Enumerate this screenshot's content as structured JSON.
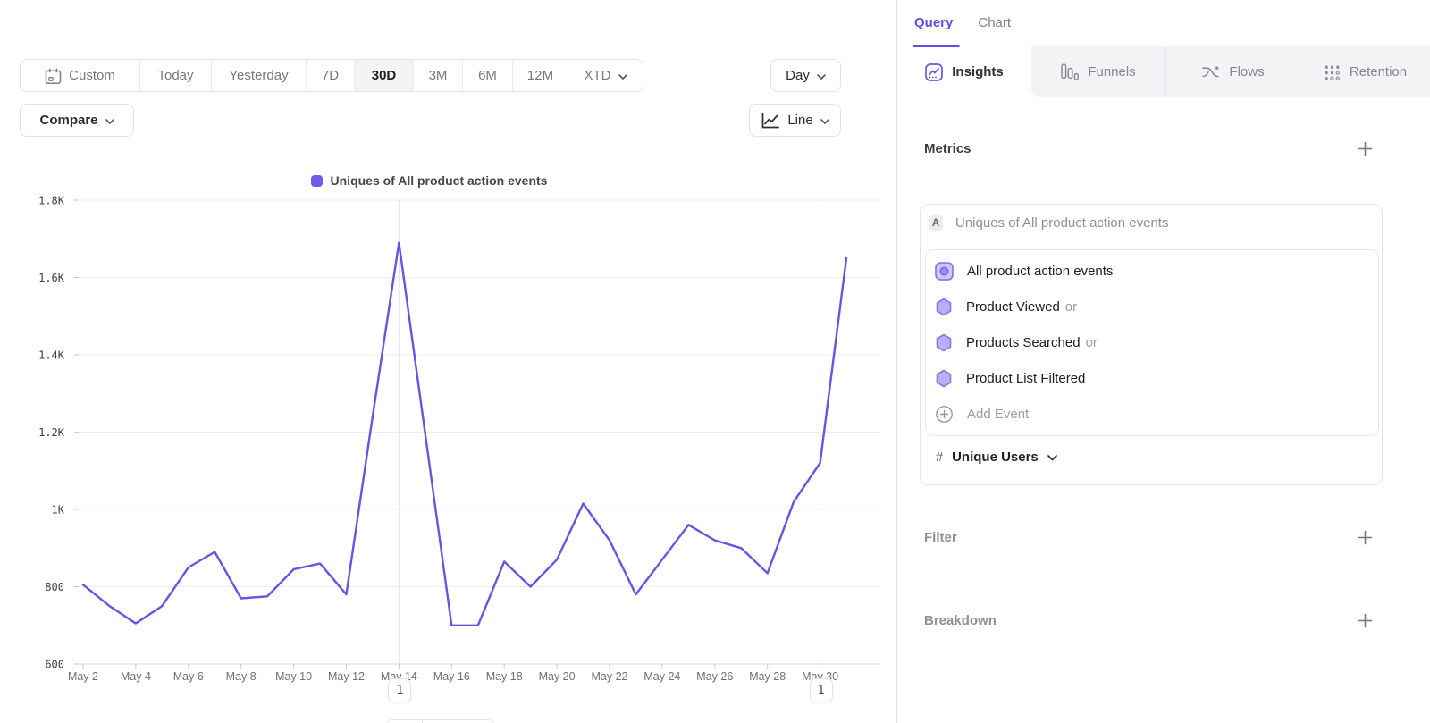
{
  "toolbar": {
    "ranges": [
      "Custom",
      "Today",
      "Yesterday",
      "7D",
      "30D",
      "3M",
      "6M",
      "12M",
      "XTD"
    ],
    "selected_range": "30D",
    "granularity": "Day",
    "chart_type": "Line",
    "compare_label": "Compare"
  },
  "legend": {
    "color": "#6b5ce8"
  },
  "chart_data": {
    "type": "line",
    "title": "Uniques of All product action events",
    "x": [
      "May 2",
      "May 3",
      "May 4",
      "May 5",
      "May 6",
      "May 7",
      "May 8",
      "May 9",
      "May 10",
      "May 11",
      "May 12",
      "May 13",
      "May 14",
      "May 15",
      "May 16",
      "May 17",
      "May 18",
      "May 19",
      "May 20",
      "May 21",
      "May 22",
      "May 23",
      "May 24",
      "May 25",
      "May 26",
      "May 27",
      "May 28",
      "May 29",
      "May 30",
      "May 31"
    ],
    "values": [
      805,
      750,
      705,
      750,
      850,
      890,
      770,
      775,
      845,
      860,
      780,
      1240,
      1690,
      1195,
      700,
      700,
      865,
      800,
      870,
      1015,
      920,
      780,
      870,
      960,
      920,
      900,
      835,
      1020,
      1120,
      1650
    ],
    "x_tick_labels": [
      "May 2",
      "May 4",
      "May 6",
      "May 8",
      "May 10",
      "May 12",
      "May 14",
      "May 16",
      "May 18",
      "May 20",
      "May 22",
      "May 24",
      "May 26",
      "May 28",
      "May 30"
    ],
    "y_tick_values": [
      600,
      800,
      1000,
      1200,
      1400,
      1600,
      1800
    ],
    "y_tick_labels": [
      "600",
      "800",
      "1K",
      "1.2K",
      "1.4K",
      "1.6K",
      "1.8K"
    ],
    "ylim": [
      600,
      1800
    ],
    "grid": true,
    "legend_position": "top-center",
    "line_color": "#6157e0",
    "annotations": [
      {
        "label": "1",
        "x": "May 14",
        "index": 12
      },
      {
        "label": "1",
        "x": "May 30",
        "index": 28
      }
    ]
  },
  "panel": {
    "tabs": {
      "query": "Query",
      "chart": "Chart",
      "active": "Query"
    },
    "subtabs": [
      {
        "label": "Insights",
        "icon": "insights-icon",
        "active": true
      },
      {
        "label": "Funnels",
        "icon": "funnels-icon",
        "active": false
      },
      {
        "label": "Flows",
        "icon": "flows-icon",
        "active": false
      },
      {
        "label": "Retention",
        "icon": "retention-icon",
        "active": false
      }
    ],
    "metrics": {
      "heading": "Metrics",
      "series_badge": "A",
      "series_label": "Uniques of All product action events",
      "events": [
        {
          "label": "All product action events",
          "suffix": "",
          "icon": "all-events-icon"
        },
        {
          "label": "Product Viewed",
          "suffix": "or",
          "icon": "hexagon-event-icon"
        },
        {
          "label": "Products Searched",
          "suffix": "or",
          "icon": "hexagon-event-icon"
        },
        {
          "label": "Product List Filtered",
          "suffix": "",
          "icon": "hexagon-event-icon"
        }
      ],
      "add_event_label": "Add Event",
      "aggregation": {
        "symbol": "#",
        "label": "Unique Users"
      }
    },
    "sections": [
      {
        "heading": "Filter"
      },
      {
        "heading": "Breakdown"
      }
    ]
  }
}
